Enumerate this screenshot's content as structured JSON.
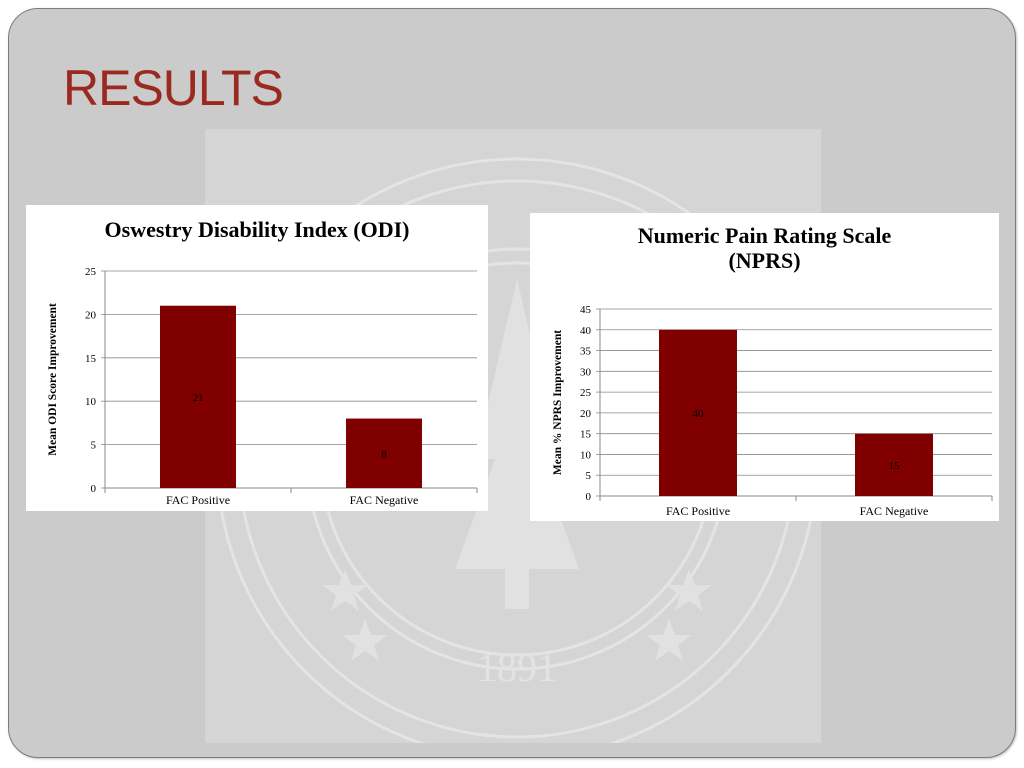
{
  "slide": {
    "title": "RESULTS",
    "seal_year": "1891",
    "colors": {
      "title": "#9a2a1f",
      "bar": "#800000",
      "slide_bg": "#cbcbcb"
    }
  },
  "chart_data": [
    {
      "type": "bar",
      "title": "Oswestry Disability Index (ODI)",
      "categories": [
        "FAC Positive",
        "FAC Negative"
      ],
      "values": [
        21,
        8
      ],
      "data_labels": [
        "21",
        "8"
      ],
      "xlabel": "",
      "ylabel": "Mean ODI Score Improvement",
      "ylim": [
        0,
        25
      ],
      "yticks": [
        0,
        5,
        10,
        15,
        20,
        25
      ],
      "grid": true,
      "legend": "none",
      "bar_color": "#800000"
    },
    {
      "type": "bar",
      "title": "Numeric Pain Rating Scale (NPRS)",
      "categories": [
        "FAC Positive",
        "FAC Negative"
      ],
      "values": [
        40,
        15
      ],
      "data_labels": [
        "40",
        "15"
      ],
      "xlabel": "",
      "ylabel": "Mean % NPRS Improvement",
      "ylim": [
        0,
        45
      ],
      "yticks": [
        0,
        5,
        10,
        15,
        20,
        25,
        30,
        35,
        40,
        45
      ],
      "grid": true,
      "legend": "none",
      "bar_color": "#800000"
    }
  ]
}
